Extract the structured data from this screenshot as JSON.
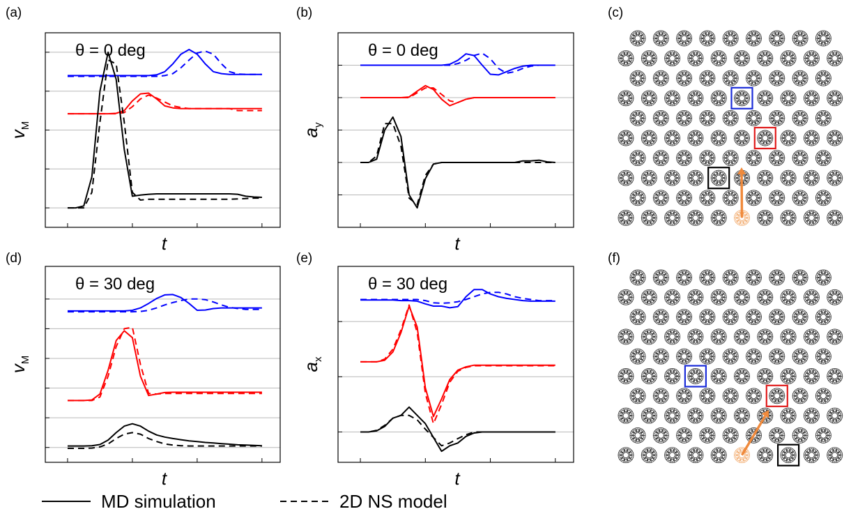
{
  "chart_data": [
    {
      "type": "line",
      "panel": "(a)",
      "annotation": "θ = 0 deg",
      "ylabel": "v",
      "ylabel_sub": "M",
      "xlabel": "t",
      "x": [
        0,
        1,
        2,
        3,
        4,
        5,
        6,
        7,
        8,
        9,
        10,
        11,
        12,
        13,
        14,
        15,
        16,
        17,
        18,
        19,
        20,
        21,
        22,
        23,
        24
      ],
      "xlim": [
        -2.75,
        26.25
      ],
      "xticks": [
        0,
        8,
        16,
        24
      ],
      "ylim": [
        -0.5,
        4.5
      ],
      "yticks": [
        0,
        1,
        2,
        3,
        4
      ],
      "grid": true,
      "series": [
        {
          "color": "#0000ff",
          "dash": "solid",
          "values": [
            3.4,
            3.4,
            3.4,
            3.4,
            3.4,
            3.4,
            3.4,
            3.4,
            3.4,
            3.4,
            3.4,
            3.42,
            3.5,
            3.7,
            3.95,
            4.07,
            3.95,
            3.7,
            3.5,
            3.45,
            3.43,
            3.43,
            3.43,
            3.43,
            3.43
          ]
        },
        {
          "color": "#0000ff",
          "dash": "dashed",
          "values": [
            3.38,
            3.38,
            3.38,
            3.38,
            3.38,
            3.38,
            3.38,
            3.38,
            3.38,
            3.38,
            3.38,
            3.38,
            3.4,
            3.45,
            3.6,
            3.8,
            3.98,
            4.03,
            3.95,
            3.7,
            3.5,
            3.44,
            3.43,
            3.43,
            3.43
          ]
        },
        {
          "color": "#ff0000",
          "dash": "solid",
          "values": [
            2.42,
            2.42,
            2.42,
            2.42,
            2.42,
            2.42,
            2.43,
            2.5,
            2.75,
            2.93,
            2.95,
            2.8,
            2.62,
            2.57,
            2.55,
            2.55,
            2.55,
            2.55,
            2.55,
            2.55,
            2.55,
            2.55,
            2.55,
            2.55,
            2.55
          ]
        },
        {
          "color": "#ff0000",
          "dash": "dashed",
          "values": [
            2.42,
            2.42,
            2.42,
            2.42,
            2.42,
            2.42,
            2.42,
            2.45,
            2.6,
            2.8,
            2.9,
            2.82,
            2.72,
            2.62,
            2.58,
            2.55,
            2.55,
            2.55,
            2.55,
            2.55,
            2.55,
            2.5,
            2.5,
            2.5,
            2.5
          ]
        },
        {
          "color": "#000000",
          "dash": "solid",
          "values": [
            0,
            0,
            0.05,
            0.8,
            3.0,
            4.0,
            3.3,
            1.5,
            0.3,
            0.33,
            0.35,
            0.36,
            0.36,
            0.36,
            0.36,
            0.36,
            0.36,
            0.36,
            0.36,
            0.36,
            0.36,
            0.35,
            0.3,
            0.28,
            0.27
          ]
        },
        {
          "color": "#000000",
          "dash": "dashed",
          "values": [
            0,
            0,
            0,
            0.4,
            2.2,
            3.8,
            3.7,
            2.2,
            0.4,
            0.2,
            0.22,
            0.22,
            0.22,
            0.22,
            0.22,
            0.22,
            0.22,
            0.22,
            0.22,
            0.22,
            0.22,
            0.23,
            0.24,
            0.25,
            0.25
          ]
        }
      ]
    },
    {
      "type": "line",
      "panel": "(b)",
      "annotation": "θ = 0 deg",
      "ylabel": "a",
      "ylabel_sub": "y",
      "xlabel": "t",
      "x": [
        0,
        1,
        2,
        3,
        4,
        5,
        6,
        7,
        8,
        9,
        10,
        11,
        12,
        13,
        14,
        15,
        16,
        17,
        18,
        19,
        20,
        21,
        22,
        23,
        24
      ],
      "xlim": [
        -2.75,
        26.25
      ],
      "xticks": [
        0,
        8,
        16,
        24
      ],
      "ylim": [
        -1,
        5
      ],
      "yticks": [
        0,
        1,
        2,
        3,
        4
      ],
      "grid": true,
      "series": [
        {
          "color": "#0000ff",
          "dash": "solid",
          "values": [
            4.0,
            4.0,
            4.0,
            4.0,
            4.0,
            4.0,
            4.0,
            4.0,
            4.0,
            4.0,
            4.0,
            4.03,
            4.15,
            4.35,
            4.3,
            4.0,
            3.72,
            3.7,
            3.8,
            3.9,
            3.97,
            4.0,
            4.0,
            4.0,
            4.0
          ]
        },
        {
          "color": "#0000ff",
          "dash": "dashed",
          "values": [
            4.0,
            4.0,
            4.0,
            4.0,
            4.0,
            4.0,
            4.0,
            4.0,
            4.0,
            4.0,
            4.0,
            4.0,
            4.05,
            4.15,
            4.3,
            4.37,
            4.2,
            3.9,
            3.75,
            3.8,
            3.9,
            3.97,
            4.0,
            4.0,
            4.0
          ]
        },
        {
          "color": "#ff0000",
          "dash": "solid",
          "values": [
            3.0,
            3.0,
            3.0,
            3.0,
            3.0,
            3.0,
            3.02,
            3.2,
            3.37,
            3.25,
            2.95,
            2.75,
            2.85,
            2.95,
            3.0,
            3.0,
            3.0,
            3.0,
            3.0,
            3.0,
            3.0,
            3.0,
            3.0,
            3.0,
            3.0
          ]
        },
        {
          "color": "#ff0000",
          "dash": "dashed",
          "values": [
            3.0,
            3.0,
            3.0,
            3.0,
            3.0,
            3.0,
            3.0,
            3.15,
            3.3,
            3.3,
            3.1,
            2.9,
            2.85,
            2.95,
            3.0,
            3.0,
            3.0,
            3.0,
            3.0,
            3.0,
            3.0,
            3.0,
            3.0,
            3.0,
            3.0
          ]
        },
        {
          "color": "#000000",
          "dash": "solid",
          "values": [
            1,
            1,
            1.1,
            2.0,
            2.4,
            1.8,
            0.0,
            -0.4,
            0.5,
            0.95,
            1.0,
            1.0,
            1.0,
            1.0,
            1.0,
            1.0,
            1.0,
            1.0,
            1.0,
            1.0,
            1.05,
            1.05,
            1.07,
            1.02,
            1.0
          ]
        },
        {
          "color": "#000000",
          "dash": "dashed",
          "values": [
            1,
            1,
            1.2,
            2.2,
            2.2,
            1.5,
            -0.1,
            -0.3,
            0.6,
            0.95,
            1.0,
            1.0,
            1.0,
            1.0,
            1.0,
            1.0,
            1.0,
            1.0,
            1.0,
            1.0,
            1.0,
            1.0,
            1.0,
            1.0,
            1.0
          ]
        }
      ]
    },
    {
      "type": "line",
      "panel": "(d)",
      "annotation": "θ = 30 deg",
      "ylabel": "v",
      "ylabel_sub": "M",
      "xlabel": "t",
      "x": [
        0,
        1,
        2,
        3,
        4,
        5,
        6,
        7,
        8,
        9,
        10,
        11,
        12,
        13,
        14,
        15,
        16,
        17,
        18,
        19,
        20,
        21,
        22,
        23,
        24
      ],
      "xlim": [
        -2.75,
        26.25
      ],
      "xticks": [
        0,
        8,
        16,
        24
      ],
      "ylim": [
        -0.5,
        6.1
      ],
      "yticks": [
        0,
        1,
        2,
        3,
        4,
        5
      ],
      "grid": true,
      "series": [
        {
          "color": "#0000ff",
          "dash": "solid",
          "values": [
            4.6,
            4.6,
            4.6,
            4.6,
            4.6,
            4.6,
            4.6,
            4.6,
            4.62,
            4.7,
            4.85,
            5.02,
            5.14,
            5.15,
            5.05,
            4.85,
            4.62,
            4.63,
            4.68,
            4.7,
            4.7,
            4.7,
            4.7,
            4.7,
            4.7
          ]
        },
        {
          "color": "#0000ff",
          "dash": "dashed",
          "values": [
            4.57,
            4.57,
            4.57,
            4.57,
            4.57,
            4.57,
            4.57,
            4.57,
            4.57,
            4.58,
            4.62,
            4.7,
            4.8,
            4.88,
            4.95,
            5.0,
            5.0,
            4.98,
            4.9,
            4.8,
            4.72,
            4.68,
            4.65,
            4.65,
            4.65
          ]
        },
        {
          "color": "#ff0000",
          "dash": "solid",
          "values": [
            1.58,
            1.58,
            1.58,
            1.6,
            1.8,
            2.6,
            3.6,
            3.93,
            3.7,
            2.4,
            1.75,
            1.8,
            1.85,
            1.86,
            1.86,
            1.86,
            1.86,
            1.86,
            1.86,
            1.86,
            1.86,
            1.86,
            1.86,
            1.86,
            1.86
          ]
        },
        {
          "color": "#ff0000",
          "dash": "dashed",
          "values": [
            1.58,
            1.58,
            1.58,
            1.58,
            1.7,
            2.4,
            3.4,
            4.0,
            4.05,
            2.8,
            1.82,
            1.8,
            1.82,
            1.82,
            1.82,
            1.82,
            1.82,
            1.82,
            1.82,
            1.82,
            1.82,
            1.82,
            1.82,
            1.82,
            1.82
          ]
        },
        {
          "color": "#000000",
          "dash": "solid",
          "values": [
            0.05,
            0.05,
            0.05,
            0.06,
            0.1,
            0.25,
            0.5,
            0.72,
            0.8,
            0.72,
            0.55,
            0.42,
            0.35,
            0.3,
            0.26,
            0.22,
            0.2,
            0.17,
            0.15,
            0.13,
            0.11,
            0.09,
            0.08,
            0.07,
            0.06
          ]
        },
        {
          "color": "#000000",
          "dash": "dashed",
          "values": [
            -0.03,
            -0.03,
            -0.03,
            -0.02,
            0.02,
            0.12,
            0.3,
            0.45,
            0.5,
            0.45,
            0.3,
            0.2,
            0.12,
            0.08,
            0.06,
            0.05,
            0.05,
            0.05,
            0.05,
            0.05,
            0.05,
            0.05,
            0.05,
            0.05,
            0.05
          ]
        }
      ]
    },
    {
      "type": "line",
      "panel": "(e)",
      "annotation": "θ = 30 deg",
      "ylabel": "a",
      "ylabel_sub": "x",
      "xlabel": "t",
      "x": [
        0,
        1,
        2,
        3,
        4,
        5,
        6,
        7,
        8,
        9,
        10,
        11,
        12,
        13,
        14,
        15,
        16,
        17,
        18,
        19,
        20,
        21,
        22,
        23,
        24
      ],
      "xlim": [
        -2.75,
        26.25
      ],
      "xticks": [
        0,
        8,
        16,
        24
      ],
      "ylim": [
        -0.55,
        3.0
      ],
      "yticks": [
        0,
        1,
        2
      ],
      "grid": true,
      "series": [
        {
          "color": "#0000ff",
          "dash": "solid",
          "values": [
            2.39,
            2.39,
            2.39,
            2.39,
            2.39,
            2.38,
            2.38,
            2.37,
            2.32,
            2.28,
            2.28,
            2.25,
            2.27,
            2.45,
            2.58,
            2.58,
            2.5,
            2.45,
            2.42,
            2.4,
            2.38,
            2.37,
            2.37,
            2.37,
            2.37
          ]
        },
        {
          "color": "#0000ff",
          "dash": "dashed",
          "values": [
            2.4,
            2.4,
            2.4,
            2.4,
            2.4,
            2.4,
            2.4,
            2.4,
            2.38,
            2.34,
            2.33,
            2.34,
            2.36,
            2.4,
            2.45,
            2.5,
            2.53,
            2.53,
            2.5,
            2.45,
            2.42,
            2.4,
            2.38,
            2.38,
            2.38
          ]
        },
        {
          "color": "#ff0000",
          "dash": "solid",
          "values": [
            1.27,
            1.27,
            1.27,
            1.3,
            1.45,
            1.8,
            2.28,
            1.9,
            0.8,
            0.28,
            0.6,
            0.95,
            1.12,
            1.18,
            1.21,
            1.21,
            1.21,
            1.21,
            1.21,
            1.21,
            1.21,
            1.21,
            1.21,
            1.21,
            1.21
          ]
        },
        {
          "color": "#ff0000",
          "dash": "dashed",
          "values": [
            1.27,
            1.27,
            1.27,
            1.32,
            1.5,
            1.85,
            2.3,
            1.8,
            0.7,
            0.15,
            0.5,
            0.9,
            1.1,
            1.17,
            1.2,
            1.2,
            1.2,
            1.2,
            1.2,
            1.2,
            1.2,
            1.2,
            1.2,
            1.2,
            1.2
          ]
        },
        {
          "color": "#000000",
          "dash": "solid",
          "values": [
            0,
            0,
            0.02,
            0.1,
            0.25,
            0.3,
            0.45,
            0.3,
            0.15,
            -0.1,
            -0.35,
            -0.25,
            -0.2,
            -0.08,
            -0.02,
            0,
            0,
            0,
            0,
            0,
            0,
            0,
            0,
            0,
            0
          ]
        },
        {
          "color": "#000000",
          "dash": "dashed",
          "values": [
            0,
            0,
            0.03,
            0.12,
            0.25,
            0.3,
            0.3,
            0.22,
            0.05,
            -0.1,
            -0.25,
            -0.2,
            -0.12,
            -0.05,
            0,
            0,
            0,
            0,
            0,
            0,
            0,
            0,
            0,
            0,
            0
          ]
        }
      ]
    }
  ],
  "legend": [
    {
      "name": "MD simulation",
      "dash": "solid"
    },
    {
      "name": "2D NS model",
      "dash": "dashed"
    }
  ],
  "diagrams": [
    {
      "label": "(c)"
    },
    {
      "label": "(f)"
    }
  ]
}
